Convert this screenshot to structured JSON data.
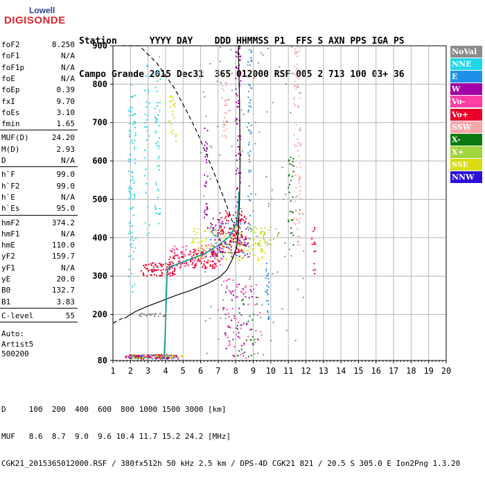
{
  "logo": {
    "line1": "Lowell",
    "line2": "DIGISONDE"
  },
  "header": {
    "line1": "Station      YYYY DAY    DDD HHMMSS P1  FFS S AXN PPS IGA PS",
    "line2": "Campo Grande 2015 Dec31  365 012000 RSF 005 2 713 100 03+ 36"
  },
  "params_groups": [
    [
      {
        "name": "foF2",
        "value": "8.250"
      },
      {
        "name": "foF1",
        "value": "N/A"
      },
      {
        "name": "foF1p",
        "value": "N/A"
      },
      {
        "name": "foE",
        "value": "N/A"
      },
      {
        "name": "foEp",
        "value": "0.39"
      },
      {
        "name": "fxI",
        "value": "9.70"
      },
      {
        "name": "foEs",
        "value": "3.10"
      },
      {
        "name": "fmin",
        "value": "1.65"
      }
    ],
    [
      {
        "name": "MUF(D)",
        "value": "24.20"
      },
      {
        "name": "M(D)",
        "value": "2.93"
      },
      {
        "name": "D",
        "value": "N/A"
      }
    ],
    [
      {
        "name": "h`F",
        "value": "99.0"
      },
      {
        "name": "h`F2",
        "value": "99.0"
      },
      {
        "name": "h`E",
        "value": "N/A"
      },
      {
        "name": "h`Es",
        "value": "95.0"
      }
    ],
    [
      {
        "name": "hmF2",
        "value": "374.2"
      },
      {
        "name": "hmF1",
        "value": "N/A"
      },
      {
        "name": "hmE",
        "value": "110.0"
      },
      {
        "name": "yF2",
        "value": "159.7"
      },
      {
        "name": "yF1",
        "value": "N/A"
      },
      {
        "name": "yE",
        "value": "20.0"
      },
      {
        "name": "B0",
        "value": "132.7"
      },
      {
        "name": "B1",
        "value": "3.83"
      }
    ],
    [
      {
        "name": "C-level",
        "value": "55"
      }
    ]
  ],
  "auto": [
    "Auto:",
    "Artist5",
    "500200"
  ],
  "legend": [
    {
      "label": "NoVal",
      "color": "#8c8c8c"
    },
    {
      "label": "NNE",
      "color": "#22d6ea"
    },
    {
      "label": "E",
      "color": "#1e90e8"
    },
    {
      "label": "W",
      "color": "#a000a8"
    },
    {
      "label": "Vo-",
      "color": "#ff3fa6"
    },
    {
      "label": "Vo+",
      "color": "#e8002a"
    },
    {
      "label": "SSW",
      "color": "#f4a8a8"
    },
    {
      "label": "X-",
      "color": "#0a7a10"
    },
    {
      "label": "X+",
      "color": "#9fd43c"
    },
    {
      "label": "SSE",
      "color": "#d8dc10"
    },
    {
      "label": "NNW",
      "color": "#2a10d8"
    }
  ],
  "footer": {
    "line1": "D     100  200  400  600  800 1000 1500 3000 [km]",
    "line2": "MUF   8.6  8.7  9.0  9.6 10.4 11.7 15.2 24.2 [MHz]",
    "line3": "CGK21_2015365012000.RSF / 380fx512h 50 kHz 2.5 km / DPS-4D CGK21 821 / 20.5 S 305.0 E Ion2Png 1.3.20"
  },
  "chart_data": {
    "type": "scatter",
    "title": "",
    "xlabel": "",
    "ylabel": "",
    "xlim": [
      1,
      20
    ],
    "ylim": [
      80,
      900
    ],
    "x_ticks": [
      1,
      2,
      3,
      4,
      5,
      6,
      7,
      8,
      9,
      10,
      11,
      12,
      13,
      14,
      15,
      16,
      17,
      18,
      19,
      20
    ],
    "y_ticks": [
      80,
      200,
      300,
      400,
      500,
      600,
      700,
      800,
      900
    ],
    "grid": true,
    "legend_position": "right",
    "series": [
      {
        "name": "profile",
        "style": "solid",
        "color": "#000000",
        "x": [
          1.65,
          2.3,
          3.0,
          3.6,
          4.2,
          4.8,
          5.4,
          6.0,
          6.6,
          7.1,
          7.5,
          7.8,
          8.05,
          8.15,
          8.22,
          8.25,
          8.22,
          8.15
        ],
        "y": [
          190,
          208,
          222,
          232,
          243,
          253,
          262,
          273,
          285,
          298,
          316,
          343,
          374,
          420,
          500,
          600,
          750,
          900
        ]
      },
      {
        "name": "topside",
        "style": "dashed",
        "color": "#000000",
        "x": [
          1.5,
          2.5,
          3.5,
          4.5,
          5.2,
          5.8,
          6.3,
          6.8,
          7.2,
          7.6,
          7.9,
          8.1
        ],
        "y": [
          900,
          900,
          855,
          790,
          730,
          675,
          620,
          565,
          518,
          470,
          430,
          400
        ]
      },
      {
        "name": "bottomside-dashed",
        "style": "dashed",
        "color": "#000000",
        "x": [
          1.0,
          1.3,
          1.65
        ],
        "y": [
          177,
          185,
          192
        ]
      },
      {
        "name": "trace",
        "style": "solid",
        "color": "#0a9090",
        "x": [
          3.92,
          3.98,
          4.05,
          4.1,
          4.2,
          4.6,
          5.3,
          6.2,
          7.0,
          7.7,
          8.05,
          8.15,
          8.18
        ],
        "y": [
          92,
          150,
          250,
          318,
          322,
          330,
          342,
          358,
          380,
          405,
          440,
          480,
          520
        ]
      }
    ],
    "echo_clusters": [
      {
        "color": "#e8002a",
        "fmin": 1.7,
        "fmax": 4.7,
        "hmin": 84,
        "hmax": 95,
        "n": 90
      },
      {
        "color": "#a000a8",
        "fmin": 1.8,
        "fmax": 4.8,
        "hmin": 84,
        "hmax": 94,
        "n": 40
      },
      {
        "color": "#d8dc10",
        "fmin": 2.0,
        "fmax": 5.0,
        "hmin": 85,
        "hmax": 95,
        "n": 40
      },
      {
        "color": "#1e90e8",
        "fmin": 2.0,
        "fmax": 4.8,
        "hmin": 84,
        "hmax": 96,
        "n": 25
      },
      {
        "color": "#e8002a",
        "fmin": 2.6,
        "fmax": 4.6,
        "hmin": 300,
        "hmax": 335,
        "n": 80
      },
      {
        "color": "#e8002a",
        "fmin": 4.2,
        "fmax": 7.0,
        "hmin": 320,
        "hmax": 370,
        "n": 120
      },
      {
        "color": "#ff3fa6",
        "fmin": 4.3,
        "fmax": 7.3,
        "hmin": 320,
        "hmax": 385,
        "n": 70
      },
      {
        "color": "#d8dc10",
        "fmin": 5.5,
        "fmax": 9.8,
        "hmin": 340,
        "hmax": 430,
        "n": 150
      },
      {
        "color": "#e8002a",
        "fmin": 7.0,
        "fmax": 8.6,
        "hmin": 360,
        "hmax": 470,
        "n": 120
      },
      {
        "color": "#a000a8",
        "fmin": 6.3,
        "fmax": 8.8,
        "hmin": 350,
        "hmax": 450,
        "n": 70
      },
      {
        "color": "#1e90e8",
        "fmin": 6.5,
        "fmax": 8.9,
        "hmin": 350,
        "hmax": 440,
        "n": 45
      },
      {
        "color": "#9fd43c",
        "fmin": 8.6,
        "fmax": 10.5,
        "hmin": 380,
        "hmax": 430,
        "n": 30
      },
      {
        "color": "#22d6ea",
        "fmin": 1.9,
        "fmax": 2.3,
        "hmin": 250,
        "hmax": 800,
        "n": 90
      },
      {
        "color": "#22d6ea",
        "fmin": 3.4,
        "fmax": 3.7,
        "hmin": 420,
        "hmax": 890,
        "n": 50
      },
      {
        "color": "#22d6ea",
        "fmin": 2.8,
        "fmax": 3.1,
        "hmin": 400,
        "hmax": 850,
        "n": 30
      },
      {
        "color": "#a000a8",
        "fmin": 8.0,
        "fmax": 8.3,
        "hmin": 480,
        "hmax": 900,
        "n": 70
      },
      {
        "color": "#a000a8",
        "fmin": 6.2,
        "fmax": 6.4,
        "hmin": 450,
        "hmax": 690,
        "n": 30
      },
      {
        "color": "#f4a8a8",
        "fmin": 11.3,
        "fmax": 11.7,
        "hmin": 380,
        "hmax": 900,
        "n": 90
      },
      {
        "color": "#f4a8a8",
        "fmin": 7.2,
        "fmax": 7.5,
        "hmin": 650,
        "hmax": 820,
        "n": 30
      },
      {
        "color": "#1e90e8",
        "fmin": 8.7,
        "fmax": 8.9,
        "hmin": 450,
        "hmax": 900,
        "n": 40
      },
      {
        "color": "#1e90e8",
        "fmin": 9.7,
        "fmax": 9.9,
        "hmin": 180,
        "hmax": 340,
        "n": 25
      },
      {
        "color": "#0a7a10",
        "fmin": 11.0,
        "fmax": 11.3,
        "hmin": 380,
        "hmax": 620,
        "n": 30
      },
      {
        "color": "#d8dc10",
        "fmin": 4.2,
        "fmax": 4.6,
        "hmin": 650,
        "hmax": 770,
        "n": 25
      },
      {
        "color": "#e8002a",
        "fmin": 12.3,
        "fmax": 12.6,
        "hmin": 300,
        "hmax": 430,
        "n": 15
      },
      {
        "color": "#8c8c8c",
        "fmin": 2.5,
        "fmax": 4.0,
        "hmin": 195,
        "hmax": 205,
        "n": 30
      },
      {
        "color": "#8c8c8c",
        "fmin": 6.0,
        "fmax": 12.0,
        "hmin": 85,
        "hmax": 900,
        "n": 120
      },
      {
        "color": "#ff3fa6",
        "fmin": 7.2,
        "fmax": 9.5,
        "hmin": 85,
        "hmax": 300,
        "n": 60
      },
      {
        "color": "#a000a8",
        "fmin": 7.3,
        "fmax": 9.0,
        "hmin": 85,
        "hmax": 280,
        "n": 40
      },
      {
        "color": "#0a7a10",
        "fmin": 8.0,
        "fmax": 9.3,
        "hmin": 85,
        "hmax": 250,
        "n": 25
      }
    ]
  }
}
